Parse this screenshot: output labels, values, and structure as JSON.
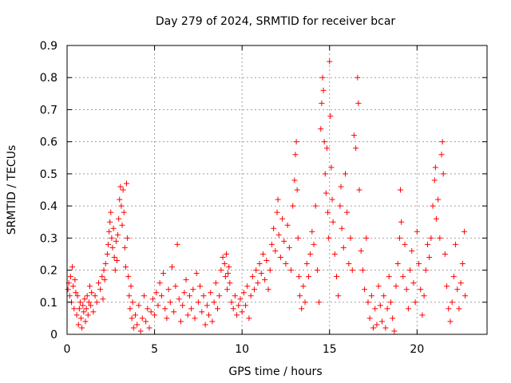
{
  "chart_data": {
    "type": "scatter",
    "title": "Day 279 of 2024, SRMTID for receiver bcar",
    "xlabel": "GPS time / hours",
    "ylabel": "SRMTID / TECUs",
    "xlim": [
      0,
      24
    ],
    "ylim": [
      0,
      0.9
    ],
    "xticks": [
      0,
      5,
      10,
      15,
      20
    ],
    "yticks": [
      0,
      0.1,
      0.2,
      0.3,
      0.4,
      0.5,
      0.6,
      0.7,
      0.8,
      0.9
    ],
    "grid": true,
    "marker": "+",
    "color": "#ff0000",
    "series": [
      {
        "name": "bcar",
        "points": [
          [
            0.05,
            0.14
          ],
          [
            0.1,
            0.16
          ],
          [
            0.15,
            0.12
          ],
          [
            0.2,
            0.18
          ],
          [
            0.25,
            0.1
          ],
          [
            0.3,
            0.21
          ],
          [
            0.35,
            0.15
          ],
          [
            0.4,
            0.08
          ],
          [
            0.45,
            0.17
          ],
          [
            0.5,
            0.13
          ],
          [
            0.55,
            0.06
          ],
          [
            0.6,
            0.12
          ],
          [
            0.65,
            0.03
          ],
          [
            0.7,
            0.08
          ],
          [
            0.75,
            0.1
          ],
          [
            0.8,
            0.05
          ],
          [
            0.85,
            0.02
          ],
          [
            0.9,
            0.09
          ],
          [
            0.95,
            0.07
          ],
          [
            1.0,
            0.11
          ],
          [
            1.05,
            0.04
          ],
          [
            1.1,
            0.08
          ],
          [
            1.15,
            0.12
          ],
          [
            1.2,
            0.06
          ],
          [
            1.25,
            0.1
          ],
          [
            1.3,
            0.15
          ],
          [
            1.35,
            0.09
          ],
          [
            1.4,
            0.13
          ],
          [
            1.5,
            0.07
          ],
          [
            1.6,
            0.12
          ],
          [
            1.7,
            0.1
          ],
          [
            1.8,
            0.16
          ],
          [
            1.9,
            0.14
          ],
          [
            2.0,
            0.18
          ],
          [
            2.05,
            0.11
          ],
          [
            2.1,
            0.2
          ],
          [
            2.15,
            0.17
          ],
          [
            2.2,
            0.22
          ],
          [
            2.3,
            0.25
          ],
          [
            2.35,
            0.28
          ],
          [
            2.4,
            0.32
          ],
          [
            2.45,
            0.35
          ],
          [
            2.5,
            0.38
          ],
          [
            2.55,
            0.3
          ],
          [
            2.6,
            0.27
          ],
          [
            2.65,
            0.33
          ],
          [
            2.7,
            0.24
          ],
          [
            2.75,
            0.2
          ],
          [
            2.8,
            0.29
          ],
          [
            2.85,
            0.23
          ],
          [
            2.9,
            0.31
          ],
          [
            2.95,
            0.36
          ],
          [
            3.0,
            0.42
          ],
          [
            3.05,
            0.46
          ],
          [
            3.1,
            0.4
          ],
          [
            3.15,
            0.34
          ],
          [
            3.2,
            0.45
          ],
          [
            3.25,
            0.38
          ],
          [
            3.3,
            0.27
          ],
          [
            3.35,
            0.21
          ],
          [
            3.4,
            0.47
          ],
          [
            3.45,
            0.3
          ],
          [
            3.5,
            0.18
          ],
          [
            3.55,
            0.12
          ],
          [
            3.6,
            0.08
          ],
          [
            3.65,
            0.15
          ],
          [
            3.7,
            0.05
          ],
          [
            3.75,
            0.1
          ],
          [
            3.8,
            0.02
          ],
          [
            3.9,
            0.06
          ],
          [
            4.0,
            0.03
          ],
          [
            4.1,
            0.09
          ],
          [
            4.2,
            0.01
          ],
          [
            4.3,
            0.05
          ],
          [
            4.4,
            0.12
          ],
          [
            4.5,
            0.04
          ],
          [
            4.6,
            0.08
          ],
          [
            4.7,
            0.02
          ],
          [
            4.8,
            0.07
          ],
          [
            4.9,
            0.11
          ],
          [
            5.0,
            0.06
          ],
          [
            5.1,
            0.13
          ],
          [
            5.2,
            0.09
          ],
          [
            5.3,
            0.16
          ],
          [
            5.4,
            0.12
          ],
          [
            5.5,
            0.19
          ],
          [
            5.6,
            0.08
          ],
          [
            5.7,
            0.05
          ],
          [
            5.8,
            0.14
          ],
          [
            5.9,
            0.1
          ],
          [
            6.0,
            0.21
          ],
          [
            6.1,
            0.07
          ],
          [
            6.2,
            0.15
          ],
          [
            6.3,
            0.28
          ],
          [
            6.4,
            0.11
          ],
          [
            6.5,
            0.04
          ],
          [
            6.6,
            0.09
          ],
          [
            6.7,
            0.13
          ],
          [
            6.8,
            0.17
          ],
          [
            6.9,
            0.06
          ],
          [
            7.0,
            0.12
          ],
          [
            7.1,
            0.08
          ],
          [
            7.2,
            0.14
          ],
          [
            7.3,
            0.05
          ],
          [
            7.4,
            0.19
          ],
          [
            7.5,
            0.1
          ],
          [
            7.6,
            0.15
          ],
          [
            7.7,
            0.07
          ],
          [
            7.8,
            0.12
          ],
          [
            7.9,
            0.03
          ],
          [
            8.0,
            0.09
          ],
          [
            8.1,
            0.06
          ],
          [
            8.2,
            0.13
          ],
          [
            8.3,
            0.04
          ],
          [
            8.4,
            0.1
          ],
          [
            8.5,
            0.16
          ],
          [
            8.6,
            0.08
          ],
          [
            8.7,
            0.12
          ],
          [
            8.8,
            0.2
          ],
          [
            8.9,
            0.24
          ],
          [
            9.0,
            0.22
          ],
          [
            9.05,
            0.18
          ],
          [
            9.1,
            0.25
          ],
          [
            9.15,
            0.14
          ],
          [
            9.2,
            0.19
          ],
          [
            9.25,
            0.21
          ],
          [
            9.3,
            0.16
          ],
          [
            9.4,
            0.1
          ],
          [
            9.5,
            0.08
          ],
          [
            9.6,
            0.12
          ],
          [
            9.7,
            0.06
          ],
          [
            9.8,
            0.09
          ],
          [
            9.9,
            0.11
          ],
          [
            10.0,
            0.07
          ],
          [
            10.1,
            0.13
          ],
          [
            10.2,
            0.09
          ],
          [
            10.3,
            0.15
          ],
          [
            10.4,
            0.05
          ],
          [
            10.5,
            0.12
          ],
          [
            10.6,
            0.18
          ],
          [
            10.7,
            0.14
          ],
          [
            10.8,
            0.2
          ],
          [
            10.9,
            0.16
          ],
          [
            11.0,
            0.22
          ],
          [
            11.1,
            0.19
          ],
          [
            11.2,
            0.25
          ],
          [
            11.3,
            0.17
          ],
          [
            11.4,
            0.23
          ],
          [
            11.5,
            0.14
          ],
          [
            11.6,
            0.2
          ],
          [
            11.7,
            0.28
          ],
          [
            11.8,
            0.33
          ],
          [
            11.9,
            0.26
          ],
          [
            12.0,
            0.38
          ],
          [
            12.05,
            0.42
          ],
          [
            12.1,
            0.31
          ],
          [
            12.2,
            0.24
          ],
          [
            12.3,
            0.36
          ],
          [
            12.4,
            0.29
          ],
          [
            12.5,
            0.22
          ],
          [
            12.6,
            0.34
          ],
          [
            12.7,
            0.27
          ],
          [
            12.8,
            0.2
          ],
          [
            12.9,
            0.4
          ],
          [
            13.0,
            0.48
          ],
          [
            13.05,
            0.56
          ],
          [
            13.1,
            0.6
          ],
          [
            13.15,
            0.45
          ],
          [
            13.2,
            0.3
          ],
          [
            13.25,
            0.18
          ],
          [
            13.3,
            0.12
          ],
          [
            13.4,
            0.08
          ],
          [
            13.5,
            0.15
          ],
          [
            13.6,
            0.1
          ],
          [
            13.7,
            0.22
          ],
          [
            13.8,
            0.18
          ],
          [
            13.9,
            0.25
          ],
          [
            14.0,
            0.32
          ],
          [
            14.1,
            0.28
          ],
          [
            14.2,
            0.4
          ],
          [
            14.3,
            0.2
          ],
          [
            14.4,
            0.1
          ],
          [
            14.5,
            0.64
          ],
          [
            14.55,
            0.72
          ],
          [
            14.6,
            0.8
          ],
          [
            14.65,
            0.76
          ],
          [
            14.7,
            0.6
          ],
          [
            14.75,
            0.5
          ],
          [
            14.8,
            0.44
          ],
          [
            14.85,
            0.58
          ],
          [
            14.9,
            0.38
          ],
          [
            14.95,
            0.3
          ],
          [
            15.0,
            0.85
          ],
          [
            15.05,
            0.68
          ],
          [
            15.1,
            0.52
          ],
          [
            15.15,
            0.42
          ],
          [
            15.2,
            0.35
          ],
          [
            15.3,
            0.25
          ],
          [
            15.4,
            0.18
          ],
          [
            15.5,
            0.12
          ],
          [
            15.6,
            0.4
          ],
          [
            15.65,
            0.46
          ],
          [
            15.7,
            0.33
          ],
          [
            15.8,
            0.27
          ],
          [
            15.9,
            0.5
          ],
          [
            16.0,
            0.38
          ],
          [
            16.1,
            0.22
          ],
          [
            16.2,
            0.3
          ],
          [
            16.3,
            0.2
          ],
          [
            16.4,
            0.62
          ],
          [
            16.5,
            0.58
          ],
          [
            16.6,
            0.8
          ],
          [
            16.65,
            0.72
          ],
          [
            16.7,
            0.45
          ],
          [
            16.8,
            0.26
          ],
          [
            16.9,
            0.2
          ],
          [
            17.0,
            0.14
          ],
          [
            17.1,
            0.3
          ],
          [
            17.2,
            0.1
          ],
          [
            17.3,
            0.05
          ],
          [
            17.4,
            0.12
          ],
          [
            17.5,
            0.02
          ],
          [
            17.6,
            0.08
          ],
          [
            17.7,
            0.03
          ],
          [
            17.8,
            0.15
          ],
          [
            17.9,
            0.09
          ],
          [
            18.0,
            0.04
          ],
          [
            18.1,
            0.12
          ],
          [
            18.2,
            0.02
          ],
          [
            18.3,
            0.08
          ],
          [
            18.4,
            0.18
          ],
          [
            18.5,
            0.1
          ],
          [
            18.6,
            0.05
          ],
          [
            18.7,
            0.01
          ],
          [
            18.8,
            0.15
          ],
          [
            18.9,
            0.22
          ],
          [
            19.0,
            0.3
          ],
          [
            19.05,
            0.45
          ],
          [
            19.1,
            0.35
          ],
          [
            19.2,
            0.18
          ],
          [
            19.3,
            0.28
          ],
          [
            19.4,
            0.14
          ],
          [
            19.5,
            0.08
          ],
          [
            19.6,
            0.2
          ],
          [
            19.7,
            0.26
          ],
          [
            19.8,
            0.16
          ],
          [
            19.9,
            0.1
          ],
          [
            20.0,
            0.32
          ],
          [
            20.1,
            0.22
          ],
          [
            20.2,
            0.14
          ],
          [
            20.3,
            0.06
          ],
          [
            20.4,
            0.12
          ],
          [
            20.5,
            0.2
          ],
          [
            20.6,
            0.28
          ],
          [
            20.7,
            0.24
          ],
          [
            20.8,
            0.3
          ],
          [
            20.9,
            0.4
          ],
          [
            21.0,
            0.48
          ],
          [
            21.05,
            0.52
          ],
          [
            21.1,
            0.36
          ],
          [
            21.2,
            0.42
          ],
          [
            21.3,
            0.3
          ],
          [
            21.4,
            0.56
          ],
          [
            21.45,
            0.6
          ],
          [
            21.5,
            0.5
          ],
          [
            21.6,
            0.25
          ],
          [
            21.7,
            0.15
          ],
          [
            21.8,
            0.08
          ],
          [
            21.9,
            0.04
          ],
          [
            22.0,
            0.1
          ],
          [
            22.1,
            0.18
          ],
          [
            22.2,
            0.28
          ],
          [
            22.3,
            0.14
          ],
          [
            22.4,
            0.08
          ],
          [
            22.5,
            0.16
          ],
          [
            22.6,
            0.22
          ],
          [
            22.7,
            0.32
          ],
          [
            22.75,
            0.12
          ]
        ]
      }
    ]
  }
}
